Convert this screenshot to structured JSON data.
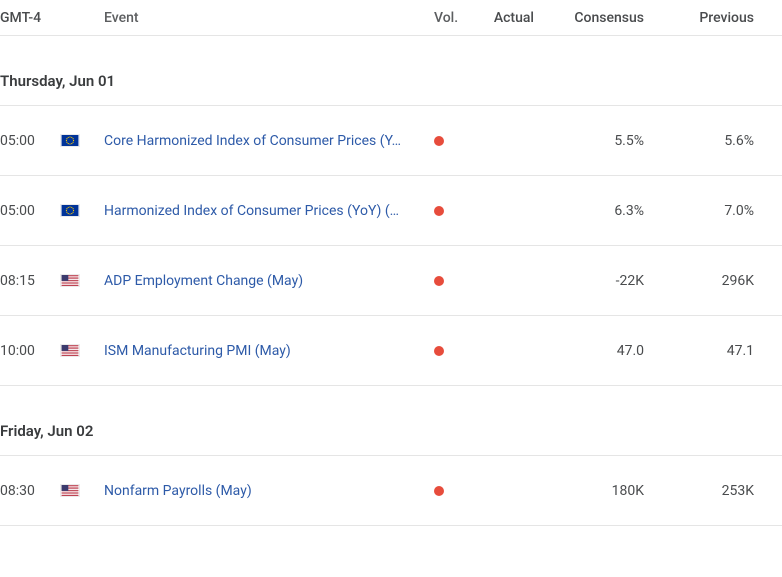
{
  "header": {
    "timezone": "GMT-4",
    "event": "Event",
    "vol": "Vol.",
    "actual": "Actual",
    "consensus": "Consensus",
    "previous": "Previous"
  },
  "colors": {
    "vol_high": "#e74c3c",
    "link": "#2d5aa8",
    "text": "#494b4d",
    "border": "#e5e5e5"
  },
  "days": [
    {
      "label": "Thursday, Jun 01",
      "events": [
        {
          "time": "05:00",
          "flag": "eu",
          "name": "Core Harmonized Index of Consumer Prices (Y…",
          "vol": "high",
          "actual": "",
          "consensus": "5.5%",
          "previous": "5.6%"
        },
        {
          "time": "05:00",
          "flag": "eu",
          "name": "Harmonized Index of Consumer Prices (YoY) (…",
          "vol": "high",
          "actual": "",
          "consensus": "6.3%",
          "previous": "7.0%"
        },
        {
          "time": "08:15",
          "flag": "us",
          "name": "ADP Employment Change (May)",
          "vol": "high",
          "actual": "",
          "consensus": "-22K",
          "previous": "296K"
        },
        {
          "time": "10:00",
          "flag": "us",
          "name": "ISM Manufacturing PMI (May)",
          "vol": "high",
          "actual": "",
          "consensus": "47.0",
          "previous": "47.1"
        }
      ]
    },
    {
      "label": "Friday, Jun 02",
      "events": [
        {
          "time": "08:30",
          "flag": "us",
          "name": "Nonfarm Payrolls (May)",
          "vol": "high",
          "actual": "",
          "consensus": "180K",
          "previous": "253K"
        }
      ]
    }
  ],
  "flags": {
    "eu": "eu",
    "us": "us"
  }
}
